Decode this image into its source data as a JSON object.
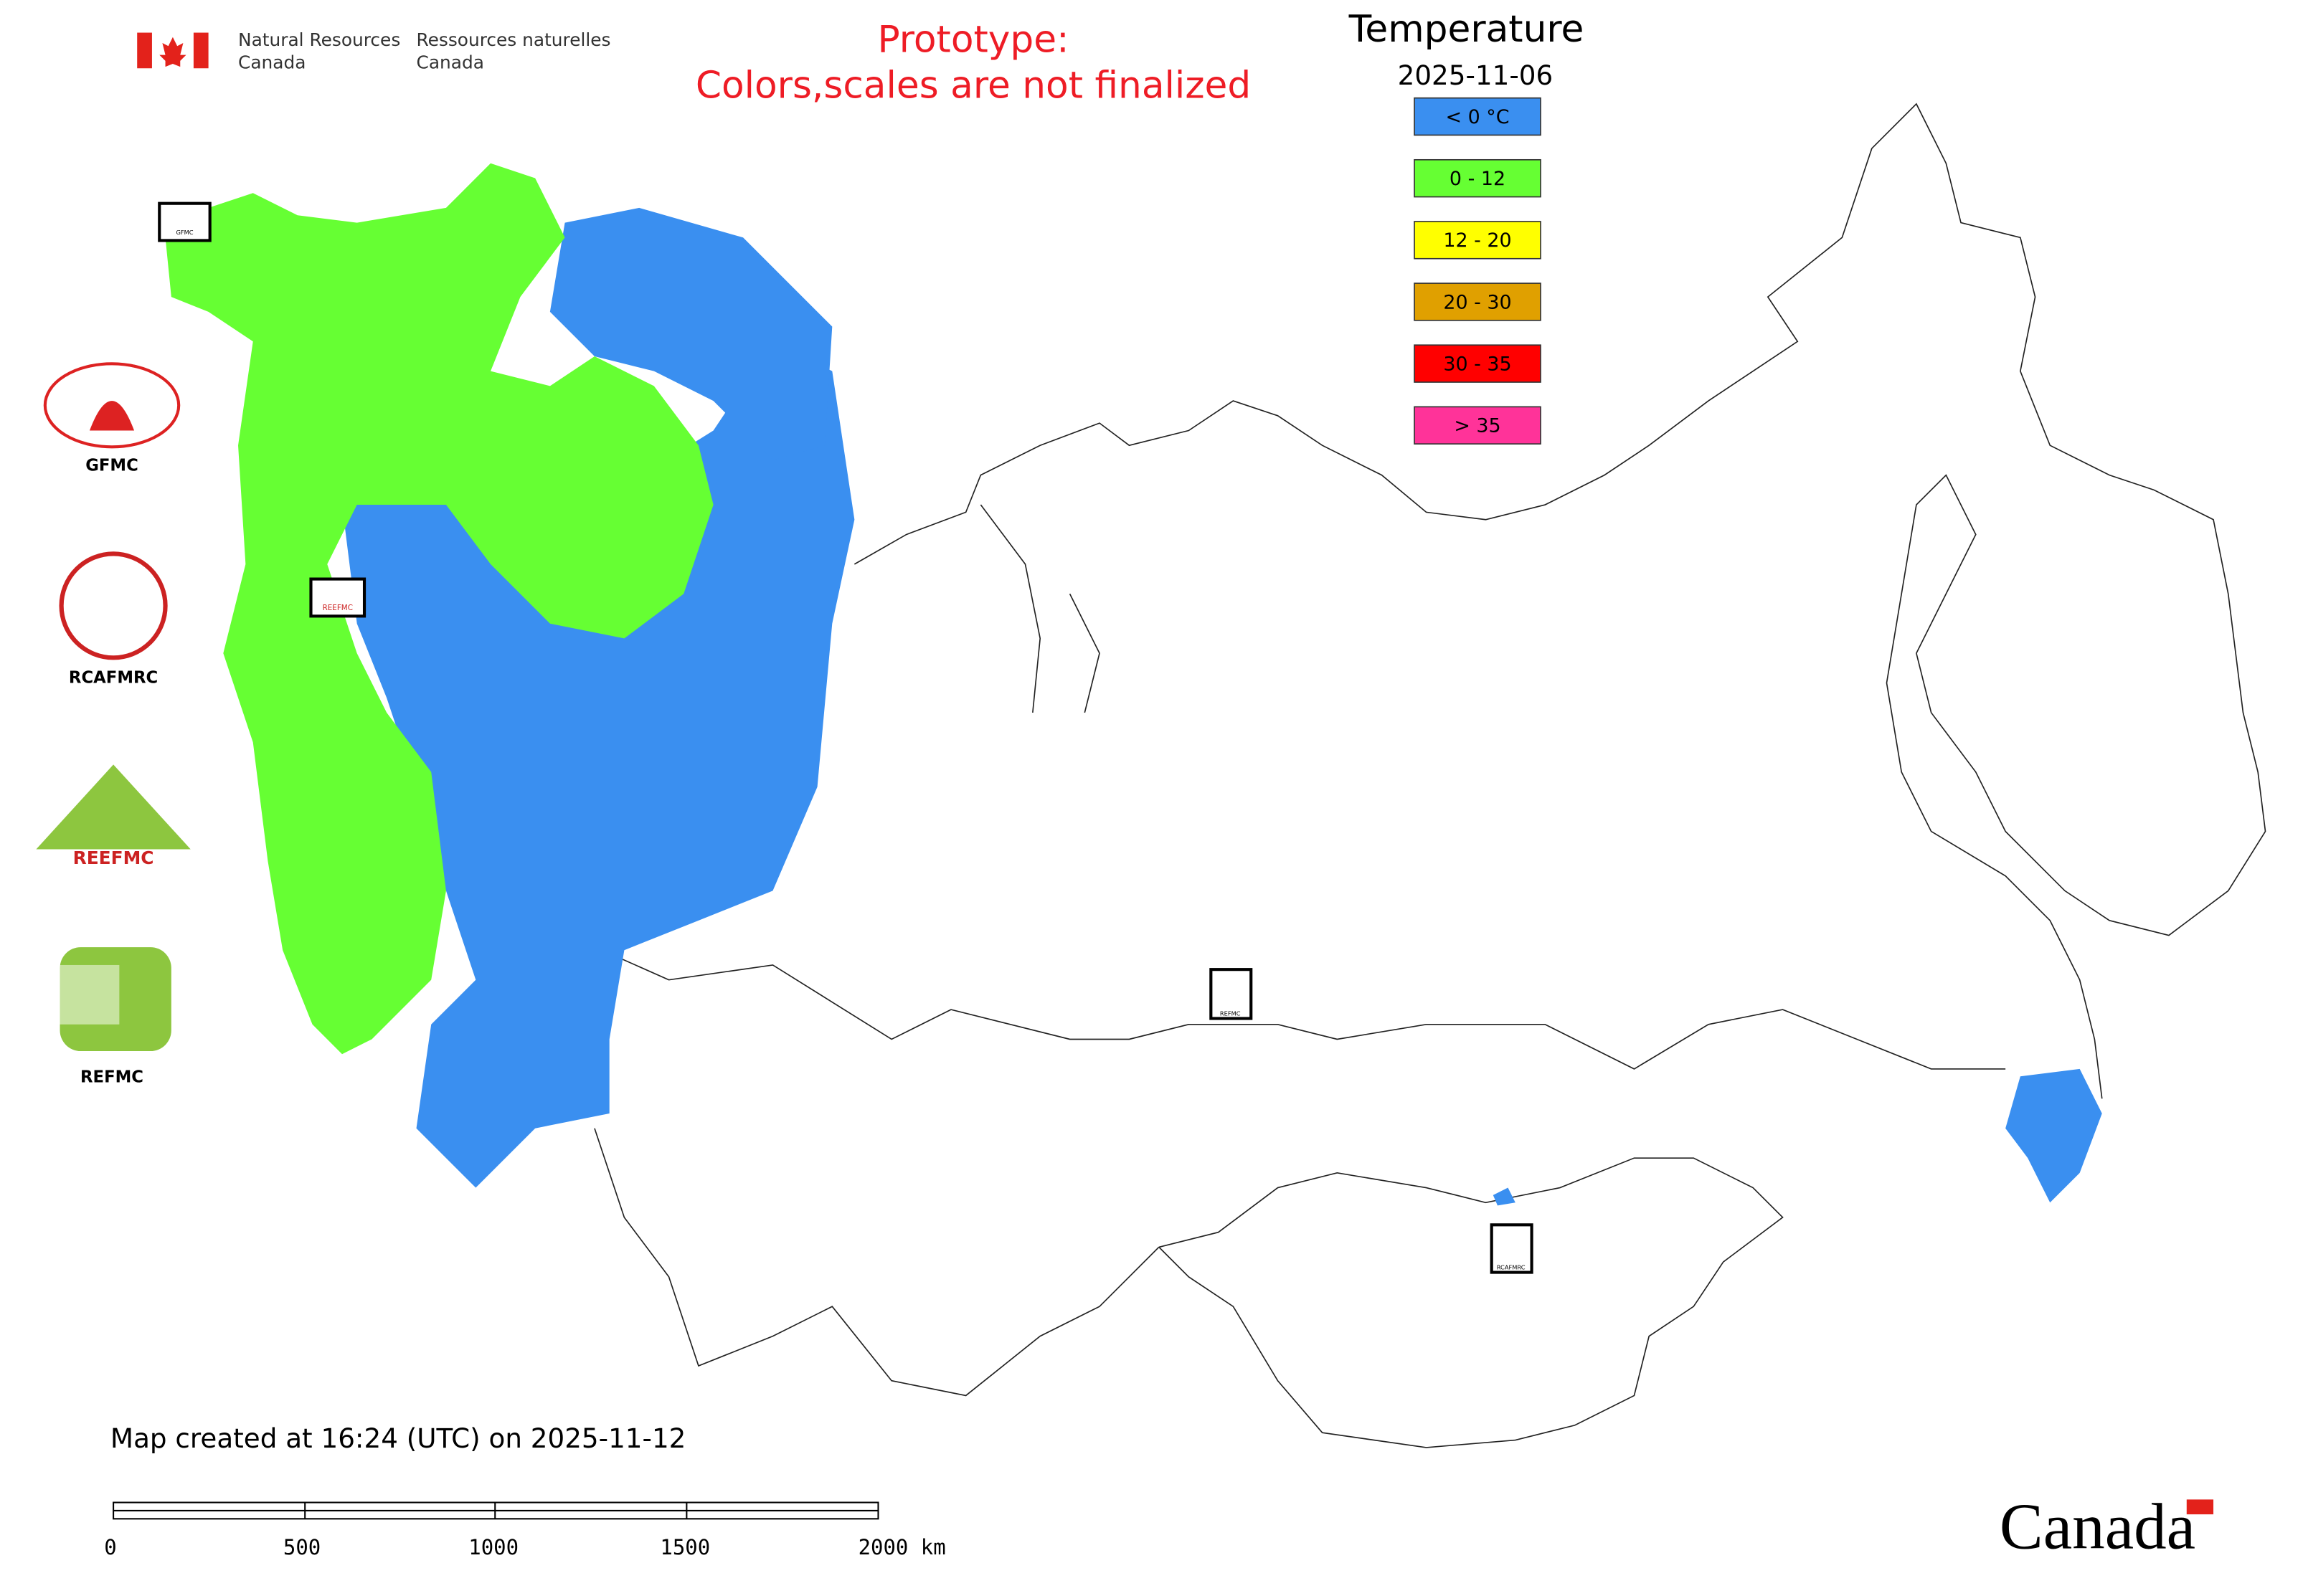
{
  "header": {
    "department_en": [
      "Natural Resources",
      "Canada"
    ],
    "department_fr": [
      "Ressources naturelles",
      "Canada"
    ],
    "notice": [
      "Prototype:",
      "Colors,scales are not finalized"
    ]
  },
  "legend": {
    "title": "Temperature",
    "date": "2025-11-06",
    "items": [
      {
        "label": "< 0 °C",
        "color": "#3a8ff0"
      },
      {
        "label": "0 - 12",
        "color": "#66ff33"
      },
      {
        "label": "12 - 20",
        "color": "#ffff00"
      },
      {
        "label": "20 - 30",
        "color": "#e0a000"
      },
      {
        "label": "30 - 35",
        "color": "#ff0000"
      },
      {
        "label": "> 35",
        "color": "#ff3399"
      }
    ]
  },
  "logos": [
    "GFMC",
    "RCAFMRC",
    "REEFMC",
    "REFMC"
  ],
  "footer": {
    "created": "Map created at 16:24 (UTC) on 2025-11-12",
    "scale_labels": [
      "0",
      "500",
      "1000",
      "1500",
      "2000 km"
    ],
    "wordmark": "Canada"
  }
}
